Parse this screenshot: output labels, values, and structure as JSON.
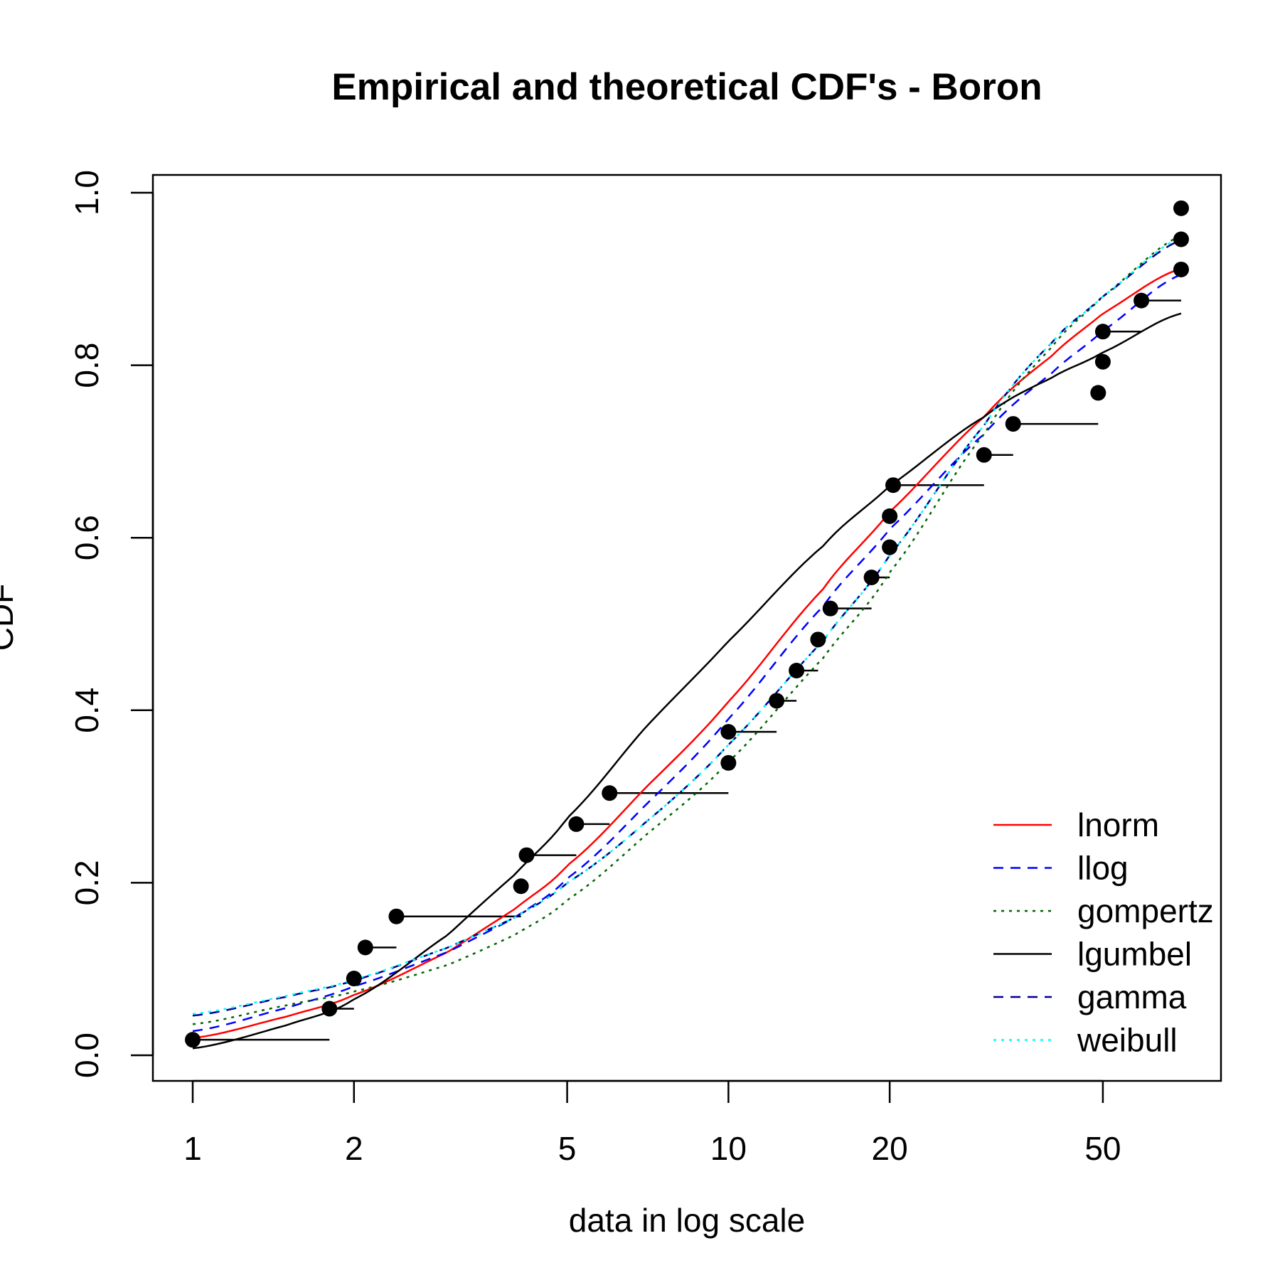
{
  "chart_data": {
    "type": "line",
    "title": "Empirical and theoretical CDF's - Boron",
    "xlabel": "data in log scale",
    "ylabel": "CDF",
    "x_scale": "log",
    "xlim": [
      1,
      70
    ],
    "ylim": [
      0,
      1
    ],
    "x_ticks": [
      1,
      2,
      5,
      10,
      20,
      50
    ],
    "x_tick_labels": [
      "1",
      "2",
      "5",
      "10",
      "20",
      "50"
    ],
    "y_ticks": [
      0,
      0.2,
      0.4,
      0.6,
      0.8,
      1
    ],
    "y_tick_labels": [
      "0.0",
      "0.2",
      "0.4",
      "0.6",
      "0.8",
      "1.0"
    ],
    "grid": false,
    "legend_position": "bottom-right",
    "empirical": {
      "points": [
        {
          "x": 1.0,
          "y": 0.018
        },
        {
          "x": 1.8,
          "y": 0.054
        },
        {
          "x": 2.0,
          "y": 0.089
        },
        {
          "x": 2.1,
          "y": 0.125
        },
        {
          "x": 2.4,
          "y": 0.161
        },
        {
          "x": 4.1,
          "y": 0.196
        },
        {
          "x": 4.2,
          "y": 0.232
        },
        {
          "x": 5.2,
          "y": 0.268
        },
        {
          "x": 6.0,
          "y": 0.304
        },
        {
          "x": 10.0,
          "y": 0.339
        },
        {
          "x": 10.0,
          "y": 0.375
        },
        {
          "x": 12.3,
          "y": 0.411
        },
        {
          "x": 13.4,
          "y": 0.446
        },
        {
          "x": 14.7,
          "y": 0.482
        },
        {
          "x": 15.5,
          "y": 0.518
        },
        {
          "x": 18.5,
          "y": 0.554
        },
        {
          "x": 20.0,
          "y": 0.589
        },
        {
          "x": 20.0,
          "y": 0.625
        },
        {
          "x": 20.3,
          "y": 0.661
        },
        {
          "x": 30.0,
          "y": 0.696
        },
        {
          "x": 34.0,
          "y": 0.732
        },
        {
          "x": 49.0,
          "y": 0.768
        },
        {
          "x": 50.0,
          "y": 0.804
        },
        {
          "x": 50.0,
          "y": 0.839
        },
        {
          "x": 59.0,
          "y": 0.875
        },
        {
          "x": 70.0,
          "y": 0.911
        },
        {
          "x": 70.0,
          "y": 0.946
        },
        {
          "x": 70.0,
          "y": 0.982
        }
      ],
      "steps": [
        {
          "x1": 1.0,
          "x2": 1.8,
          "y": 0.018
        },
        {
          "x1": 1.8,
          "x2": 2.0,
          "y": 0.054
        },
        {
          "x1": 2.1,
          "x2": 2.4,
          "y": 0.125
        },
        {
          "x1": 2.4,
          "x2": 4.1,
          "y": 0.161
        },
        {
          "x1": 4.2,
          "x2": 5.2,
          "y": 0.232
        },
        {
          "x1": 5.2,
          "x2": 6.0,
          "y": 0.268
        },
        {
          "x1": 6.0,
          "x2": 10.0,
          "y": 0.304
        },
        {
          "x1": 10.0,
          "x2": 12.3,
          "y": 0.375
        },
        {
          "x1": 12.3,
          "x2": 13.4,
          "y": 0.411
        },
        {
          "x1": 13.4,
          "x2": 14.7,
          "y": 0.446
        },
        {
          "x1": 15.5,
          "x2": 18.5,
          "y": 0.518
        },
        {
          "x1": 18.5,
          "x2": 20.0,
          "y": 0.554
        },
        {
          "x1": 20.3,
          "x2": 30.0,
          "y": 0.661
        },
        {
          "x1": 30.0,
          "x2": 34.0,
          "y": 0.696
        },
        {
          "x1": 34.0,
          "x2": 49.0,
          "y": 0.732
        },
        {
          "x1": 50.0,
          "x2": 59.0,
          "y": 0.839
        },
        {
          "x1": 59.0,
          "x2": 70.0,
          "y": 0.875
        }
      ]
    },
    "series": [
      {
        "name": "lnorm",
        "color": "#ff0000",
        "dash": "solid",
        "x": [
          1,
          1.5,
          2,
          3,
          4,
          5,
          7,
          10,
          15,
          20,
          30,
          40,
          50,
          70
        ],
        "y": [
          0.02,
          0.045,
          0.07,
          0.12,
          0.17,
          0.22,
          0.31,
          0.41,
          0.54,
          0.63,
          0.74,
          0.81,
          0.86,
          0.912
        ]
      },
      {
        "name": "llog",
        "color": "#0000ff",
        "dash": "dashed",
        "x": [
          1,
          1.5,
          2,
          3,
          4,
          5,
          7,
          10,
          15,
          20,
          30,
          40,
          50,
          70
        ],
        "y": [
          0.028,
          0.055,
          0.08,
          0.12,
          0.16,
          0.205,
          0.29,
          0.39,
          0.52,
          0.61,
          0.72,
          0.79,
          0.84,
          0.905
        ]
      },
      {
        "name": "gompertz",
        "color": "#006400",
        "dash": "dotted",
        "x": [
          1,
          1.5,
          2,
          3,
          4,
          5,
          7,
          10,
          15,
          20,
          30,
          40,
          50,
          70
        ],
        "y": [
          0.036,
          0.058,
          0.074,
          0.105,
          0.14,
          0.18,
          0.255,
          0.34,
          0.46,
          0.56,
          0.72,
          0.82,
          0.88,
          0.95
        ]
      },
      {
        "name": "lgumbel",
        "color": "#000000",
        "dash": "solid",
        "x": [
          1,
          1.5,
          2,
          3,
          4,
          5,
          7,
          10,
          15,
          20,
          30,
          40,
          50,
          70
        ],
        "y": [
          0.008,
          0.035,
          0.065,
          0.14,
          0.21,
          0.275,
          0.38,
          0.48,
          0.59,
          0.66,
          0.74,
          0.785,
          0.815,
          0.86
        ]
      },
      {
        "name": "gamma",
        "color": "#00008b",
        "dash": "dashed",
        "x": [
          1,
          1.5,
          2,
          3,
          4,
          5,
          7,
          10,
          15,
          20,
          30,
          40,
          50,
          70
        ],
        "y": [
          0.046,
          0.068,
          0.087,
          0.125,
          0.16,
          0.2,
          0.27,
          0.36,
          0.48,
          0.58,
          0.73,
          0.825,
          0.88,
          0.945
        ]
      },
      {
        "name": "weibull",
        "color": "#00ffff",
        "dash": "dotted",
        "x": [
          1,
          1.5,
          2,
          3,
          4,
          5,
          7,
          10,
          15,
          20,
          30,
          40,
          50,
          70
        ],
        "y": [
          0.048,
          0.069,
          0.088,
          0.125,
          0.16,
          0.2,
          0.27,
          0.36,
          0.48,
          0.58,
          0.73,
          0.825,
          0.88,
          0.948
        ]
      }
    ]
  }
}
